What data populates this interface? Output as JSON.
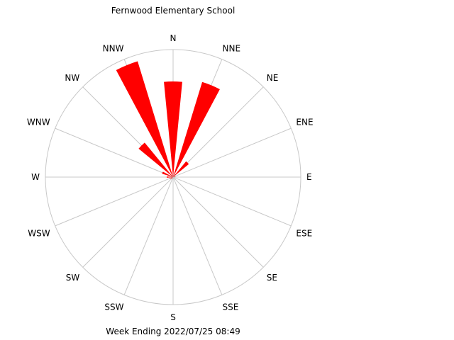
{
  "chart_data": {
    "type": "polar-bar",
    "title": "Fernwood Elementary School",
    "subtitle": "Week Ending 2022/07/25 08:49",
    "directions": [
      "N",
      "NNE",
      "NE",
      "ENE",
      "E",
      "ESE",
      "SE",
      "SSE",
      "S",
      "SSW",
      "SW",
      "WSW",
      "W",
      "WNW",
      "NW",
      "NNW"
    ],
    "max_value": 1.0,
    "bar_color": "#ff0000",
    "grid_color": "#c8c8c8",
    "series": [
      {
        "values": [
          0.75,
          0.78,
          0.16,
          0.02,
          0.01,
          0.0,
          0.0,
          0.0,
          0.0,
          0.0,
          0.02,
          0.03,
          0.05,
          0.09,
          0.35,
          0.95
        ]
      }
    ]
  }
}
